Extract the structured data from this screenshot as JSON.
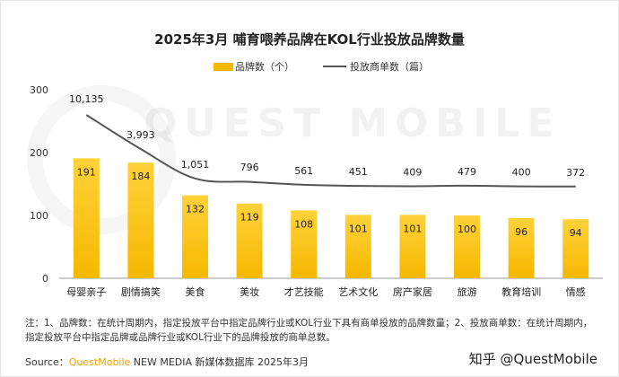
{
  "title": "2025年3月 哺育喂养品牌在KOL行业投放品牌数量",
  "legend": {
    "bar_label": "品牌数（个）",
    "line_label": "投放商单数（篇）"
  },
  "colors": {
    "bar": "#f6b800",
    "bar_top": "#ffd23a",
    "line": "#555555",
    "axis": "#999999"
  },
  "background_watermark": "QUEST MOBILE",
  "chart_data": {
    "type": "bar",
    "categories": [
      "母婴亲子",
      "剧情搞笑",
      "美食",
      "美妆",
      "才艺技能",
      "艺术文化",
      "房产家居",
      "旅游",
      "教育培训",
      "情感"
    ],
    "series": [
      {
        "name": "品牌数（个）",
        "type": "bar",
        "values": [
          191,
          184,
          132,
          119,
          108,
          101,
          101,
          100,
          96,
          94
        ]
      },
      {
        "name": "投放商单数（篇）",
        "type": "line",
        "values": [
          10135,
          3993,
          1051,
          796,
          561,
          451,
          409,
          479,
          400,
          372
        ],
        "labels": [
          "10,135",
          "3,993",
          "1,051",
          "796",
          "561",
          "451",
          "409",
          "479",
          "400",
          "372"
        ]
      }
    ],
    "y_ticks": [
      0,
      100,
      200,
      300
    ],
    "ylim": [
      0,
      300
    ],
    "grid": false,
    "legend_position": "top-center"
  },
  "note": "注：1、品牌数：在统计周期内，指定投放平台中指定品牌行业或KOL行业下具有商单投放的品牌数量；2、投放商单数：在统计周期内，指定投放平台中指定品牌或品牌行业或KOL行业下的品牌投放的商单总数。",
  "source": {
    "prefix": "Source：",
    "brand": "QuestMobile",
    "suffix": " NEW MEDIA 新媒体数据库 2025年3月"
  },
  "watermark": "知乎 @QuestMobile"
}
